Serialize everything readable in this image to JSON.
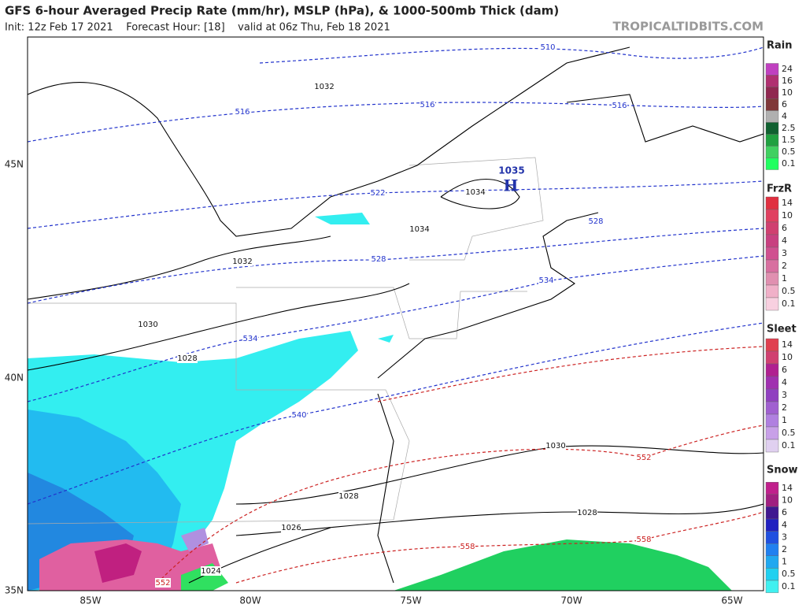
{
  "header": {
    "title": "GFS 6-hour Averaged Precip Rate (mm/hr), MSLP (hPa), & 1000-500mb Thick (dam)",
    "subtitle": "Init: 12z Feb 17 2021    Forecast Hour: [18]    valid at 06z Thu, Feb 18 2021",
    "site": "TROPICALTIDBITS.COM"
  },
  "map": {
    "lon_labels": [
      "85W",
      "80W",
      "75W",
      "70W",
      "65W"
    ],
    "lat_labels": [
      "45N",
      "40N",
      "35N"
    ],
    "high": {
      "label": "H",
      "pressure": "1035"
    },
    "isobar_labels": [
      "1032",
      "1034",
      "1034",
      "1032",
      "1030",
      "1028",
      "1030",
      "1028",
      "1028",
      "1026",
      "1024"
    ],
    "thickness_labels": [
      "510",
      "516",
      "516",
      "516",
      "522",
      "528",
      "528",
      "534",
      "534",
      "540",
      "552",
      "558",
      "558",
      "552"
    ]
  },
  "legend": [
    {
      "title": "Rain",
      "labels": [
        "24",
        "16",
        "10",
        "6",
        "4",
        "2.5",
        "1.5",
        "0.5",
        "0.1"
      ]
    },
    {
      "title": "FrzR",
      "labels": [
        "14",
        "10",
        "6",
        "4",
        "3",
        "2",
        "1",
        "0.5",
        "0.1"
      ]
    },
    {
      "title": "Sleet",
      "labels": [
        "14",
        "10",
        "6",
        "4",
        "3",
        "2",
        "1",
        "0.5",
        "0.1"
      ]
    },
    {
      "title": "Snow",
      "labels": [
        "14",
        "10",
        "6",
        "4",
        "3",
        "2",
        "1",
        "0.5",
        "0.1"
      ]
    }
  ]
}
